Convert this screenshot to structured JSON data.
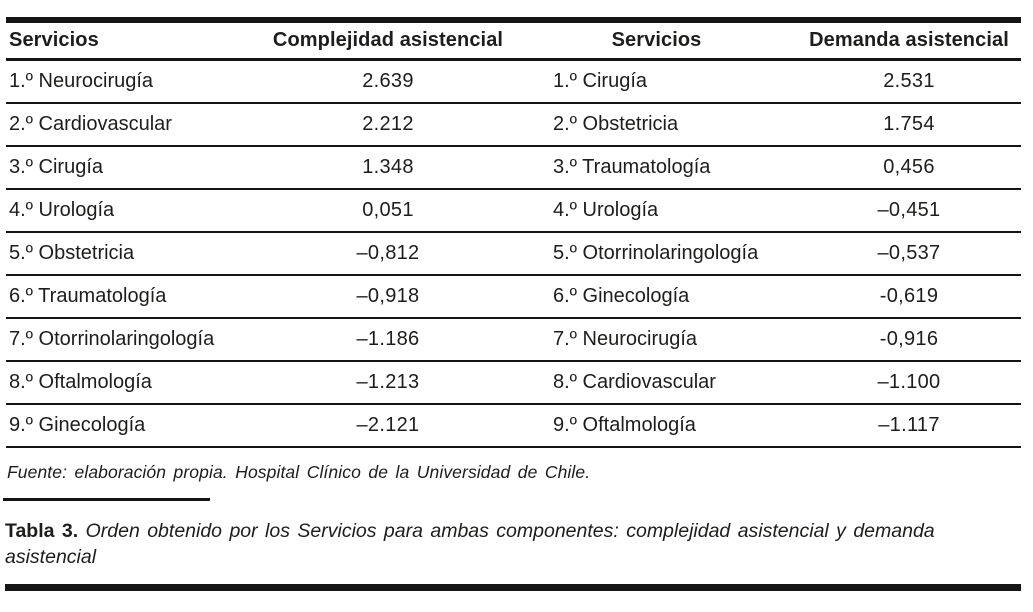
{
  "table": {
    "header": {
      "col1": "Servicios",
      "col2": "Complejidad asistencial",
      "col3": "Servicios",
      "col4": "Demanda asistencial"
    },
    "rows": [
      {
        "service_left": "1.º Neurocirugía",
        "value_left": "2.639",
        "service_right": "1.º Cirugía",
        "value_right": "2.531"
      },
      {
        "service_left": "2.º Cardiovascular",
        "value_left": "2.212",
        "service_right": "2.º Obstetricia",
        "value_right": "1.754"
      },
      {
        "service_left": "3.º Cirugía",
        "value_left": "1.348",
        "service_right": "3.º Traumatología",
        "value_right": "0,456"
      },
      {
        "service_left": "4.º Urología",
        "value_left": "0,051",
        "service_right": "4.º Urología",
        "value_right": "–0,451"
      },
      {
        "service_left": "5.º Obstetricia",
        "value_left": "–0,812",
        "service_right": "5.º Otorrinolaringología",
        "value_right": "–0,537"
      },
      {
        "service_left": "6.º Traumatología",
        "value_left": "–0,918",
        "service_right": "6.º Ginecología",
        "value_right": "-0,619"
      },
      {
        "service_left": "7.º Otorrinolaringología",
        "value_left": "–1.186",
        "service_right": "7.º Neurocirugía",
        "value_right": "-0,916"
      },
      {
        "service_left": "8.º Oftalmología",
        "value_left": "–1.213",
        "service_right": "8.º Cardiovascular",
        "value_right": "–1.100"
      },
      {
        "service_left": "9.º Ginecología",
        "value_left": "–2.121",
        "service_right": "9.º Oftalmología",
        "value_right": "–1.117"
      }
    ]
  },
  "footnote": "Fuente: elaboración propia. Hospital Clínico de la Universidad de Chile.",
  "caption": {
    "label": "Tabla 3.",
    "text": "Orden obtenido por los Servicios para ambas componentes: complejidad asistencial y demanda asistencial"
  }
}
